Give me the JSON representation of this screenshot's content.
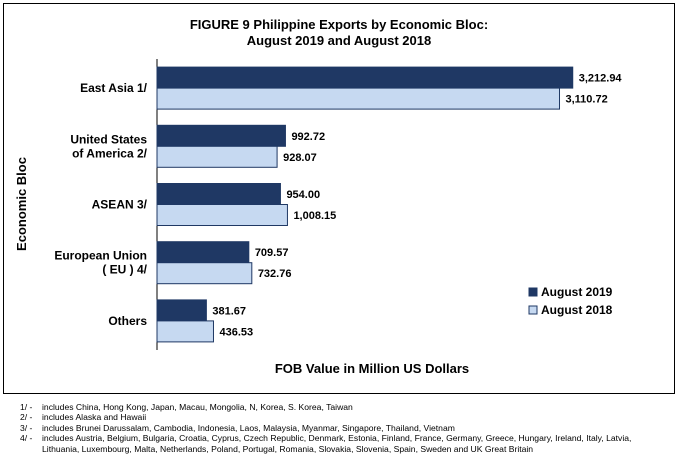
{
  "chart_data": {
    "type": "bar",
    "orientation": "horizontal",
    "title": [
      "FIGURE 9  Philippine Exports by Economic Bloc:",
      "August 2019 and August 2018"
    ],
    "xlabel": "FOB Value in Million US Dollars",
    "ylabel": "Economic Bloc",
    "categories": [
      [
        "East Asia 1/"
      ],
      [
        "United States",
        "of America 2/"
      ],
      [
        "ASEAN 3/"
      ],
      [
        "European Union",
        "( EU ) 4/"
      ],
      [
        "Others"
      ]
    ],
    "series": [
      {
        "name": "August 2019",
        "values": [
          3212.94,
          992.72,
          954.0,
          709.57,
          381.67
        ],
        "labels": [
          "3,212.94",
          "992.72",
          "954.00",
          "709.57",
          "381.67"
        ],
        "color": "#1f3864"
      },
      {
        "name": "August 2018",
        "values": [
          3110.72,
          928.07,
          1008.15,
          732.76,
          436.53
        ],
        "labels": [
          "3,110.72",
          "928.07",
          "1,008.15",
          "732.76",
          "436.53"
        ],
        "color": "#c6d9f1"
      }
    ],
    "xlim": [
      0,
      3300
    ],
    "grid": false,
    "legend": "bottom-right"
  },
  "footnotes": [
    {
      "marker": "1/ -",
      "text": "includes China, Hong Kong, Japan, Macau, Mongolia, N, Korea, S. Korea, Taiwan"
    },
    {
      "marker": "2/ -",
      "text": "includes Alaska and Hawaii"
    },
    {
      "marker": "3/ -",
      "text": "includes Brunei Darussalam, Cambodia, Indonesia, Laos, Malaysia, Myanmar, Singapore, Thailand, Vietnam"
    },
    {
      "marker": "4/  -",
      "text": "includes Austria, Belgium, Bulgaria, Croatia, Cyprus, Czech Republic, Denmark, Estonia,  Finland, France, Germany, Greece, Hungary, Ireland, Italy, Latvia,  Lithuania, Luxembourg, Malta, Netherlands, Poland, Portugal, Romania, Slovakia, Slovenia, Spain, Sweden and UK Great Britain"
    }
  ]
}
